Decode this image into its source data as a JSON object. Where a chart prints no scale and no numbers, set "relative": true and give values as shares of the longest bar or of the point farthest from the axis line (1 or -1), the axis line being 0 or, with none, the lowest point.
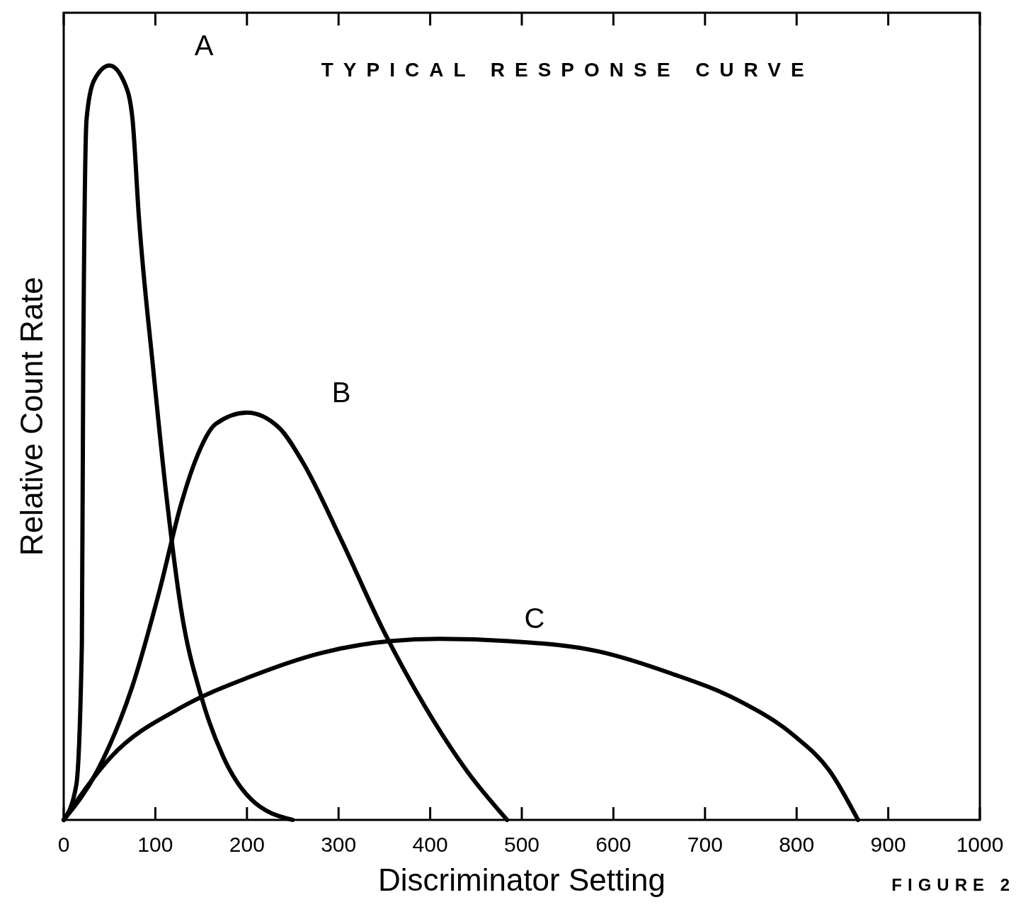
{
  "chart_data": {
    "type": "line",
    "title": "TYPICAL RESPONSE CURVE",
    "xlabel": "Discriminator Setting",
    "ylabel": "Relative Count Rate",
    "annotations": [
      "FIGURE 2"
    ],
    "relative": true,
    "grid": false,
    "marker": "none",
    "line_style": "solid",
    "xlim": [
      0,
      1000
    ],
    "xticks": [
      0,
      100,
      200,
      300,
      400,
      500,
      600,
      700,
      800,
      900,
      1000
    ],
    "series": [
      {
        "name": "A",
        "color": "#000000",
        "x": [
          0,
          13.7,
          19.8,
          21.3,
          25,
          33,
          50,
          67,
          75,
          82,
          97.5,
          113,
          128,
          151,
          174,
          204,
          250
        ],
        "values": [
          0,
          0.046,
          0.232,
          0.6,
          0.93,
          0.98,
          1,
          0.975,
          0.93,
          0.8,
          0.6,
          0.42,
          0.28,
          0.16,
          0.084,
          0.028,
          0
        ]
      },
      {
        "name": "B",
        "color": "#000000",
        "x": [
          0,
          36.6,
          74.6,
          105,
          128,
          143,
          166,
          200,
          235,
          261,
          303,
          349,
          395,
          440,
          484
        ],
        "values": [
          0,
          0.065,
          0.176,
          0.306,
          0.418,
          0.474,
          0.525,
          0.54,
          0.52,
          0.474,
          0.371,
          0.251,
          0.149,
          0.065,
          0
        ]
      },
      {
        "name": "C",
        "color": "#000000",
        "x": [
          0,
          52,
          128,
          204,
          280,
          356,
          410,
          486,
          585,
          661,
          737,
          798,
          836,
          867
        ],
        "values": [
          0,
          0.084,
          0.149,
          0.19,
          0.221,
          0.237,
          0.24,
          0.237,
          0.223,
          0.195,
          0.158,
          0.111,
          0.065,
          0
        ]
      }
    ]
  }
}
